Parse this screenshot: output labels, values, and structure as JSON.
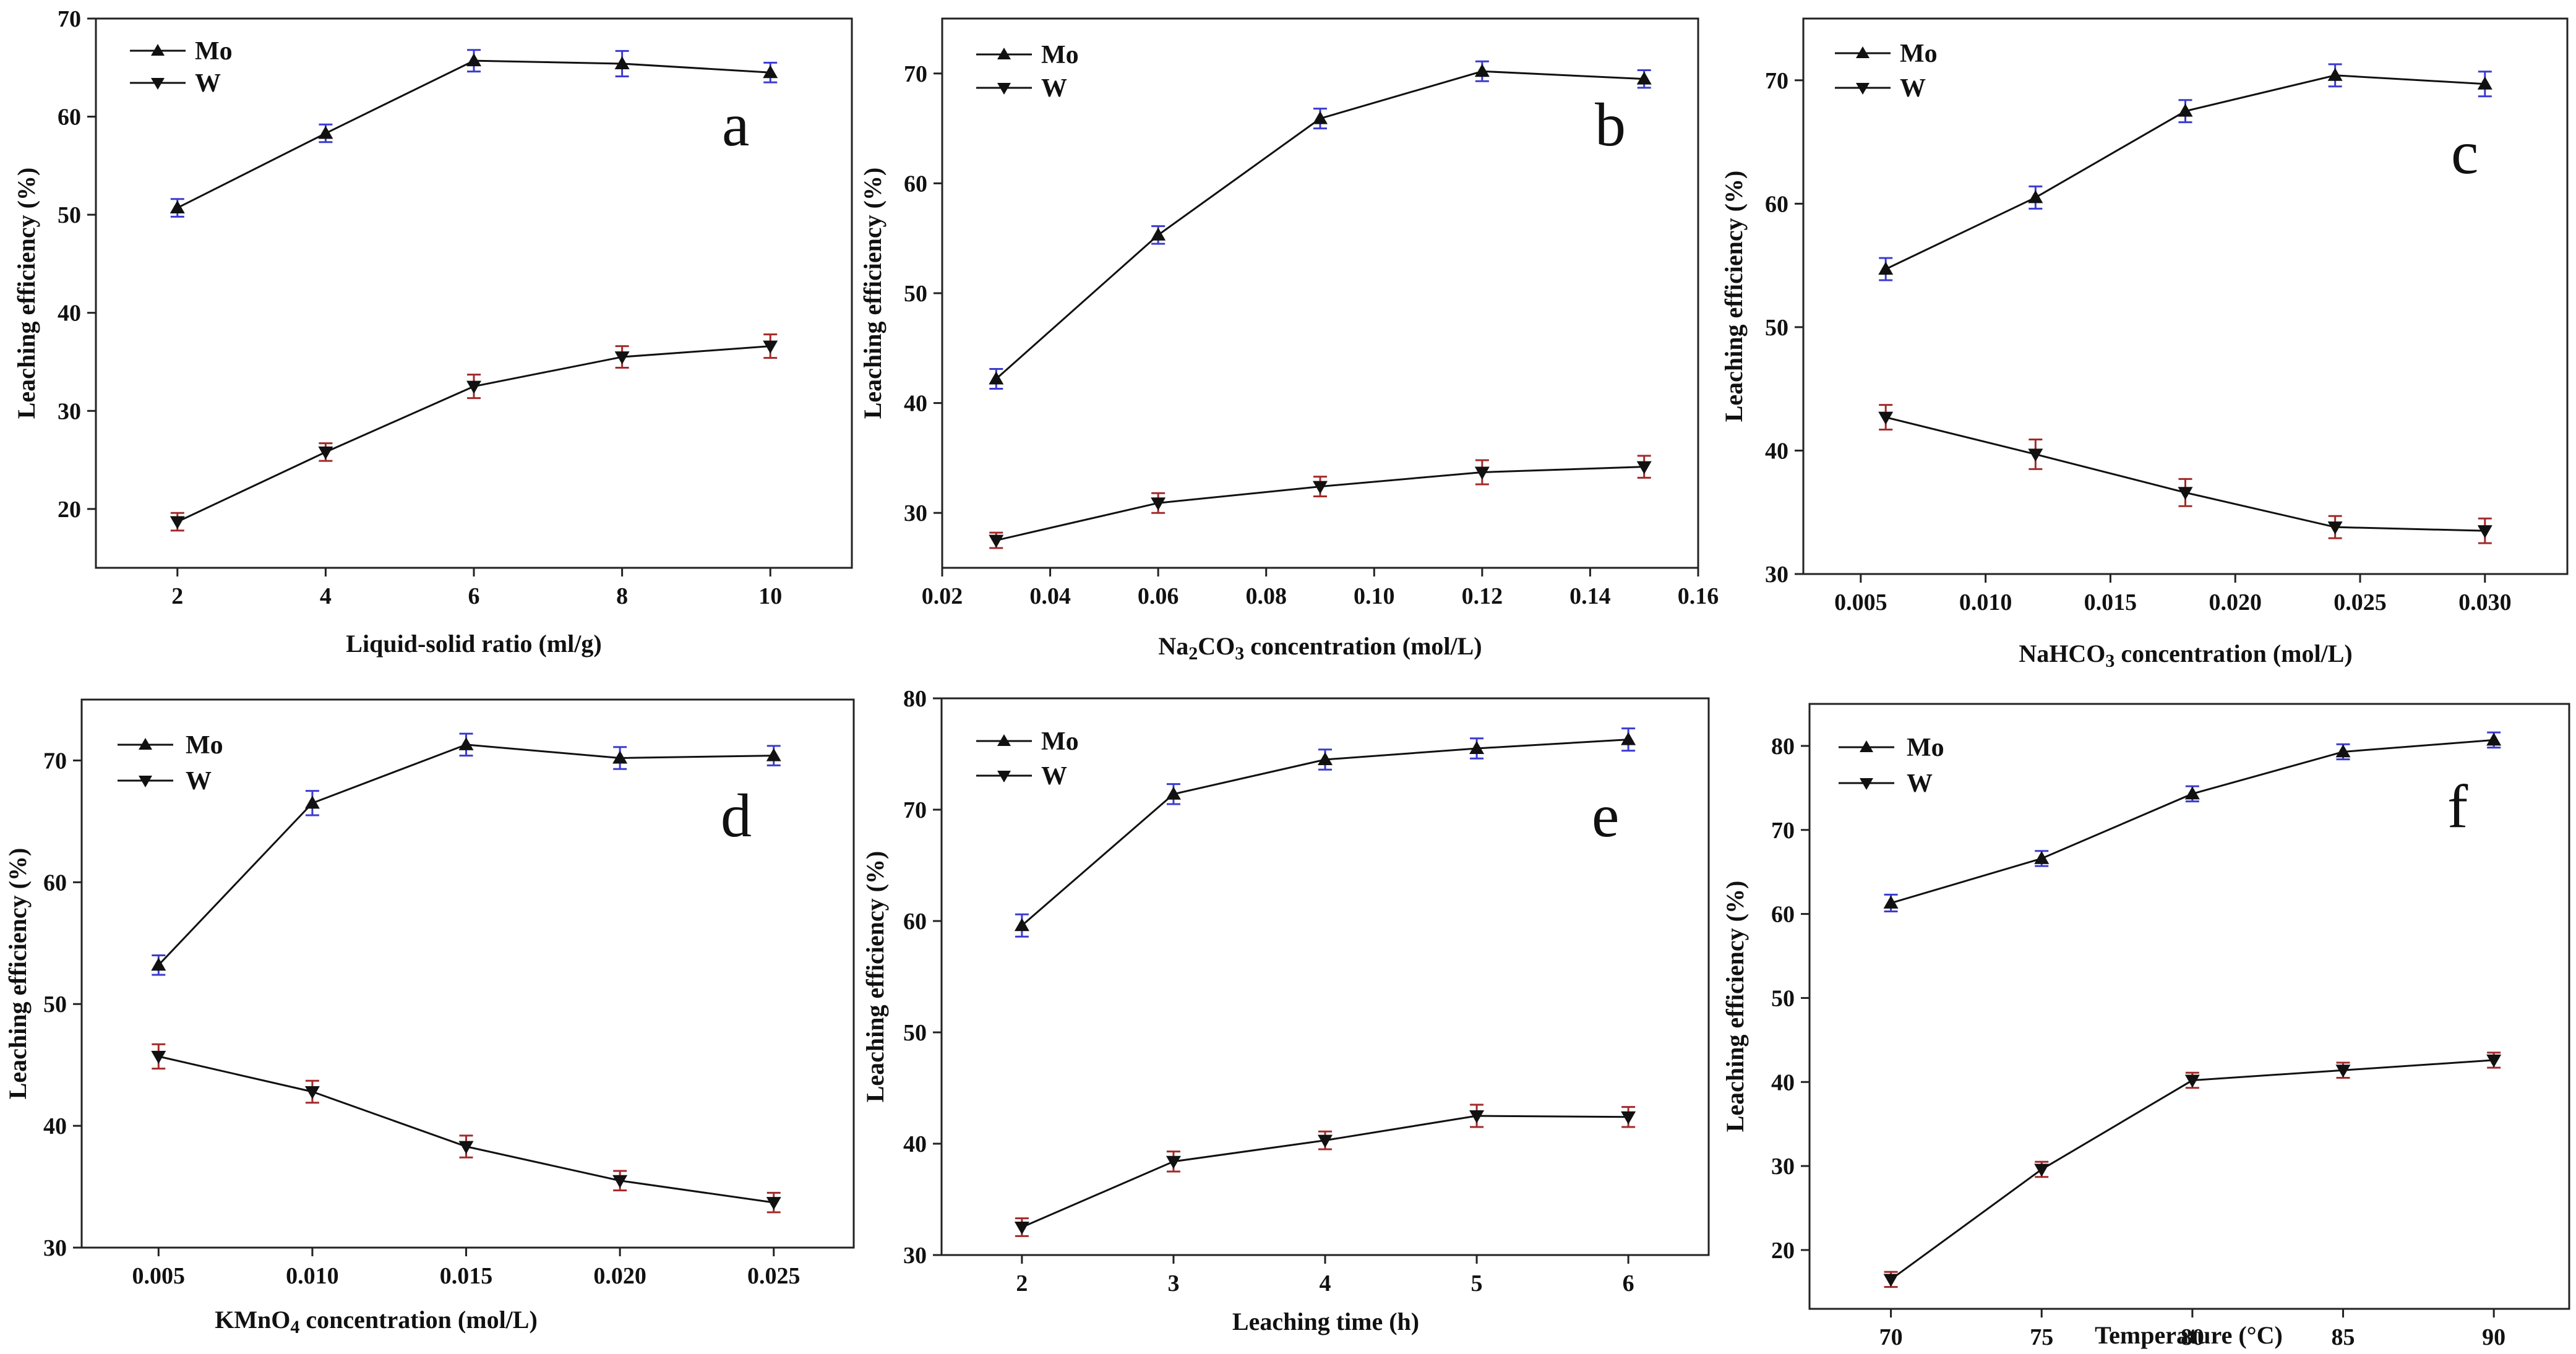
{
  "chart_data": [
    {
      "type": "line",
      "panel_letter": "a",
      "xlabel": "Liquid-solid ratio (ml/g)",
      "ylabel": "Leaching  efficiency (%)",
      "x": [
        2,
        4,
        6,
        8,
        10
      ],
      "x_ticks": [
        "2",
        "4",
        "6",
        "8",
        "10"
      ],
      "y_ticks": [
        "20",
        "30",
        "40",
        "50",
        "60",
        "70"
      ],
      "xlim": [
        0.9,
        11.1
      ],
      "ylim": [
        14,
        70
      ],
      "series": [
        {
          "name": "Mo",
          "marker": "triangle-up",
          "values": [
            50.7,
            58.3,
            65.7,
            65.4,
            64.5
          ],
          "errors": [
            0.9,
            0.9,
            1.1,
            1.3,
            1.0
          ],
          "error_color": "#3b3bd1"
        },
        {
          "name": "W",
          "marker": "triangle-down",
          "values": [
            18.7,
            25.8,
            32.5,
            35.5,
            36.6
          ],
          "errors": [
            0.9,
            0.9,
            1.2,
            1.1,
            1.2
          ],
          "error_color": "#a22a2a"
        }
      ]
    },
    {
      "type": "line",
      "panel_letter": "b",
      "xlabel": "Na2CO3 concentration (mol/L)",
      "ylabel": "Leaching  efficiency (%)",
      "x": [
        0.03,
        0.06,
        0.09,
        0.12,
        0.15
      ],
      "x_ticks": [
        "0.02",
        "0.04",
        "0.06",
        "0.08",
        "0.10",
        "0.12",
        "0.14",
        "0.16"
      ],
      "y_ticks": [
        "30",
        "40",
        "50",
        "60",
        "70"
      ],
      "xlim": [
        0.02,
        0.16
      ],
      "ylim": [
        25,
        75
      ],
      "series": [
        {
          "name": "Mo",
          "marker": "triangle-up",
          "values": [
            42.2,
            55.3,
            65.9,
            70.2,
            69.5
          ],
          "errors": [
            0.9,
            0.8,
            0.9,
            0.9,
            0.8
          ],
          "error_color": "#3b3bd1"
        },
        {
          "name": "W",
          "marker": "triangle-down",
          "values": [
            27.5,
            30.9,
            32.4,
            33.7,
            34.2
          ],
          "errors": [
            0.7,
            0.9,
            0.9,
            1.1,
            1.0
          ],
          "error_color": "#a22a2a"
        }
      ]
    },
    {
      "type": "line",
      "panel_letter": "c",
      "xlabel": "NaHCO3 concentration (mol/L)",
      "ylabel": "Leaching  efficiency (%)",
      "x": [
        0.006,
        0.012,
        0.018,
        0.024,
        0.03
      ],
      "x_ticks": [
        "0.005",
        "0.010",
        "0.015",
        "0.020",
        "0.025",
        "0.030"
      ],
      "y_ticks": [
        "30",
        "40",
        "50",
        "60",
        "70"
      ],
      "xlim": [
        0.0027,
        0.0333
      ],
      "ylim": [
        30,
        75
      ],
      "series": [
        {
          "name": "Mo",
          "marker": "triangle-up",
          "values": [
            54.7,
            60.5,
            67.5,
            70.4,
            69.7
          ],
          "errors": [
            0.9,
            0.9,
            0.9,
            0.9,
            1.0
          ],
          "error_color": "#3b3bd1"
        },
        {
          "name": "W",
          "marker": "triangle-down",
          "values": [
            42.7,
            39.7,
            36.6,
            33.8,
            33.5
          ],
          "errors": [
            1.0,
            1.2,
            1.1,
            0.9,
            1.0
          ],
          "error_color": "#a22a2a"
        }
      ]
    },
    {
      "type": "line",
      "panel_letter": "d",
      "xlabel": "KMnO4 concentration (mol/L)",
      "ylabel": "Leaching  efficiency (%)",
      "x": [
        0.005,
        0.01,
        0.015,
        0.02,
        0.025
      ],
      "x_ticks": [
        "0.005",
        "0.010",
        "0.015",
        "0.020",
        "0.025"
      ],
      "y_ticks": [
        "30",
        "40",
        "50",
        "60",
        "70"
      ],
      "xlim": [
        0.0025,
        0.0276
      ],
      "ylim": [
        30,
        75
      ],
      "series": [
        {
          "name": "Mo",
          "marker": "triangle-up",
          "values": [
            53.2,
            66.5,
            71.3,
            70.2,
            70.4
          ],
          "errors": [
            0.8,
            1.0,
            0.9,
            0.9,
            0.8
          ],
          "error_color": "#3b3bd1"
        },
        {
          "name": "W",
          "marker": "triangle-down",
          "values": [
            45.7,
            42.8,
            38.3,
            35.5,
            33.7
          ],
          "errors": [
            1.0,
            0.9,
            0.9,
            0.8,
            0.8
          ],
          "error_color": "#a22a2a"
        }
      ]
    },
    {
      "type": "line",
      "panel_letter": "e",
      "xlabel": "Leaching time (h)",
      "ylabel": "Leaching  efficiency (%)",
      "x": [
        2,
        3,
        4,
        5,
        6
      ],
      "x_ticks": [
        "2",
        "3",
        "4",
        "5",
        "6"
      ],
      "y_ticks": [
        "30",
        "40",
        "50",
        "60",
        "70",
        "80"
      ],
      "xlim": [
        1.47,
        6.53
      ],
      "ylim": [
        30,
        80
      ],
      "series": [
        {
          "name": "Mo",
          "marker": "triangle-up",
          "values": [
            59.6,
            71.4,
            74.5,
            75.5,
            76.3
          ],
          "errors": [
            1.0,
            0.9,
            0.9,
            0.9,
            1.0
          ],
          "error_color": "#3b3bd1"
        },
        {
          "name": "W",
          "marker": "triangle-down",
          "values": [
            32.5,
            38.4,
            40.3,
            42.5,
            42.4
          ],
          "errors": [
            0.8,
            0.9,
            0.8,
            1.0,
            0.9
          ],
          "error_color": "#a22a2a"
        }
      ]
    },
    {
      "type": "line",
      "panel_letter": "f",
      "xlabel": "Temperature (°C)",
      "ylabel": "Leaching  efficiency (%)",
      "x": [
        70,
        75,
        80,
        85,
        90
      ],
      "x_ticks": [
        "70",
        "75",
        "80",
        "85",
        "90"
      ],
      "y_ticks": [
        "20",
        "30",
        "40",
        "50",
        "60",
        "70",
        "80"
      ],
      "xlim": [
        67.3,
        92.5
      ],
      "ylim": [
        13,
        85
      ],
      "series": [
        {
          "name": "Mo",
          "marker": "triangle-up",
          "values": [
            61.3,
            66.6,
            74.3,
            79.3,
            80.7
          ],
          "errors": [
            1.0,
            0.9,
            0.9,
            0.9,
            0.9
          ],
          "error_color": "#3b3bd1"
        },
        {
          "name": "W",
          "marker": "triangle-down",
          "values": [
            16.5,
            29.6,
            40.2,
            41.4,
            42.6
          ],
          "errors": [
            0.9,
            0.9,
            0.9,
            0.9,
            0.9
          ],
          "error_color": "#a22a2a"
        }
      ]
    }
  ]
}
